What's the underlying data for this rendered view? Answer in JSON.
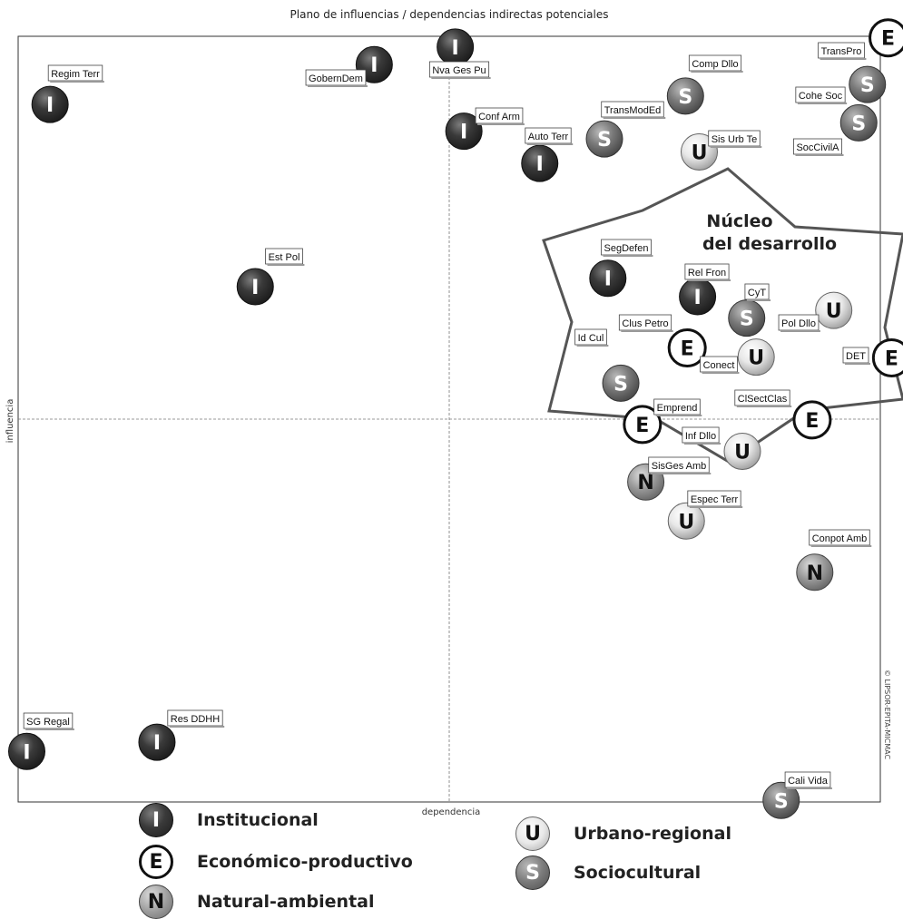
{
  "chart_data": {
    "type": "scatter",
    "title": "Plano de influencias / dependencias indirectas potenciales",
    "xlabel": "dependencia",
    "ylabel": "influencia",
    "xlim": [
      0,
      100
    ],
    "ylim": [
      0,
      100
    ],
    "grid": false,
    "quadrant_lines": true,
    "watermark": "© LIPSOR-EPITA-MICMAC",
    "region_label_line1": "Núcleo",
    "region_label_line2": "del desarrollo",
    "categories": [
      {
        "code": "I",
        "name": "Institucional",
        "color": "#2b2b2b"
      },
      {
        "code": "E",
        "name": "Económico-productivo",
        "color": "#ffffff"
      },
      {
        "code": "N",
        "name": "Natural-ambiental",
        "color": "#8c8c8c"
      },
      {
        "code": "U",
        "name": "Urbano-regional",
        "color": "#e6e6e6"
      },
      {
        "code": "S",
        "name": "Sociocultural",
        "color": "#6e6e6e"
      }
    ],
    "points": [
      {
        "label": "Regim Terr",
        "cat": "I",
        "x": 3.7,
        "y": 91.1
      },
      {
        "label": "GobernDem",
        "cat": "I",
        "x": 41.3,
        "y": 96.3
      },
      {
        "label": "Nva Ges Pu",
        "cat": "I",
        "x": 50.7,
        "y": 98.6
      },
      {
        "label": "Conf Arm",
        "cat": "I",
        "x": 51.7,
        "y": 87.6
      },
      {
        "label": "Auto Terr",
        "cat": "I",
        "x": 60.5,
        "y": 83.4
      },
      {
        "label": "TransModEd",
        "cat": "S",
        "x": 68.0,
        "y": 86.6
      },
      {
        "label": "Comp Dllo",
        "cat": "S",
        "x": 77.4,
        "y": 92.2
      },
      {
        "label": "Sis Urb Te",
        "cat": "U",
        "x": 79.0,
        "y": 84.9
      },
      {
        "label": "TransPro",
        "cat": "E",
        "x": 100.9,
        "y": 99.8
      },
      {
        "label": "Cohe Soc",
        "cat": "S",
        "x": 98.5,
        "y": 93.7
      },
      {
        "label": "SocCivilA",
        "cat": "S",
        "x": 97.5,
        "y": 88.7
      },
      {
        "label": "Est Pol",
        "cat": "I",
        "x": 27.5,
        "y": 67.3
      },
      {
        "label": "SegDefen",
        "cat": "I",
        "x": 68.4,
        "y": 68.4
      },
      {
        "label": "Rel Fron",
        "cat": "I",
        "x": 78.8,
        "y": 66.0
      },
      {
        "label": "CyT",
        "cat": "S",
        "x": 84.5,
        "y": 63.2
      },
      {
        "label": "Pol Dllo",
        "cat": "U",
        "x": 94.6,
        "y": 64.2
      },
      {
        "label": "Clus Petro",
        "cat": "E",
        "x": 77.6,
        "y": 59.3
      },
      {
        "label": "Conect",
        "cat": "U",
        "x": 85.6,
        "y": 58.1
      },
      {
        "label": "Id Cul",
        "cat": "S",
        "x": 69.9,
        "y": 54.7
      },
      {
        "label": "DET",
        "cat": "E",
        "x": 101.3,
        "y": 58.0
      },
      {
        "label": "Emprend",
        "cat": "E",
        "x": 72.4,
        "y": 49.3
      },
      {
        "label": "ClSectClas",
        "cat": "E",
        "x": 92.1,
        "y": 49.9
      },
      {
        "label": "Inf Dllo",
        "cat": "U",
        "x": 84.0,
        "y": 45.8
      },
      {
        "label": "SisGes Amb",
        "cat": "N",
        "x": 72.8,
        "y": 41.8
      },
      {
        "label": "Espec Terr",
        "cat": "U",
        "x": 77.5,
        "y": 36.7
      },
      {
        "label": "Conpot Amb",
        "cat": "N",
        "x": 92.4,
        "y": 30.0
      },
      {
        "label": "SG Regal",
        "cat": "I",
        "x": 1.0,
        "y": 6.6
      },
      {
        "label": "Res DDHH",
        "cat": "I",
        "x": 16.1,
        "y": 7.8
      },
      {
        "label": "Cali Vida",
        "cat": "S",
        "x": 88.5,
        "y": 0.2
      }
    ]
  }
}
